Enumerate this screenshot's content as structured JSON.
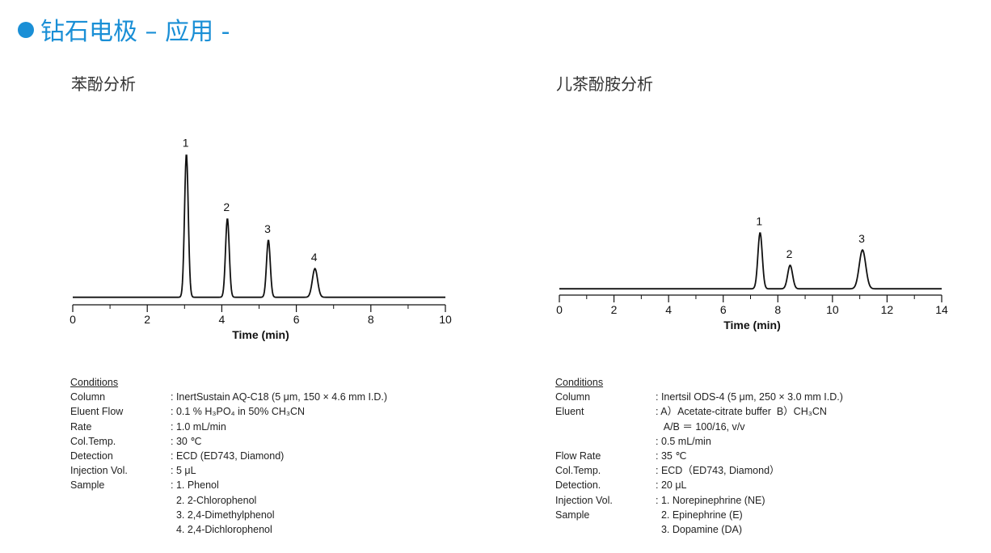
{
  "header": {
    "title": "钻石电极 – 应用 -"
  },
  "colors": {
    "accent": "#1a8fd6",
    "trace": "#111111"
  },
  "left": {
    "subtitle": "苯酚分析",
    "conditions_heading": "Conditions",
    "conditions": [
      {
        "k": "Column",
        "v": ": InertSustain AQ-C18 (5 μm, 150 × 4.6 mm I.D.)"
      },
      {
        "k": "Eluent  Flow",
        "v": ": 0.1 % H₃PO₄ in 50% CH₃CN"
      },
      {
        "k": "Rate",
        "v": ": 1.0 mL/min"
      },
      {
        "k": "Col.Temp.",
        "v": ": 30 ℃"
      },
      {
        "k": "Detection",
        "v": ": ECD (ED743, Diamond)"
      },
      {
        "k": "Injection Vol.",
        "v": ": 5 μL"
      },
      {
        "k": "Sample",
        "v": ": 1. Phenol"
      },
      {
        "k": "",
        "v": "  2. 2-Chlorophenol"
      },
      {
        "k": "",
        "v": "  3. 2,4-Dimethylphenol"
      },
      {
        "k": "",
        "v": "  4. 2,4-Dichlorophenol"
      }
    ]
  },
  "right": {
    "subtitle": "儿茶酚胺分析",
    "conditions_heading": "Conditions",
    "conditions": [
      {
        "k": "Column",
        "v": ": Inertsil ODS-4 (5 μm, 250 × 3.0 mm I.D.)"
      },
      {
        "k": "Eluent",
        "v": ": A）Acetate-citrate buffer  B）CH₃CN"
      },
      {
        "k": "",
        "v": "   A/B ＝ 100/16, v/v"
      },
      {
        "k": "",
        "v": ": 0.5 mL/min"
      },
      {
        "k": "Flow Rate",
        "v": ": 35 ℃"
      },
      {
        "k": "Col.Temp.",
        "v": ": ECD（ED743, Diamond）"
      },
      {
        "k": "Detection.",
        "v": ": 20 μL"
      },
      {
        "k": "Injection Vol.",
        "v": ": 1. Norepinephrine (NE)"
      },
      {
        "k": "Sample",
        "v": "  2. Epinephrine (E)"
      },
      {
        "k": "",
        "v": "  3. Dopamine (DA)"
      }
    ]
  },
  "chart_data": [
    {
      "type": "line",
      "xlabel": "Time (min)",
      "xlim": [
        0,
        10
      ],
      "xticks": [
        0,
        2,
        4,
        6,
        8,
        10
      ],
      "ylim": [
        0,
        1.1
      ],
      "baseline": 0.03,
      "peaks": [
        {
          "label": "1",
          "time": 3.05,
          "height": 1.0,
          "width": 0.05
        },
        {
          "label": "2",
          "time": 4.15,
          "height": 0.55,
          "width": 0.05
        },
        {
          "label": "3",
          "time": 5.25,
          "height": 0.4,
          "width": 0.05
        },
        {
          "label": "4",
          "time": 6.5,
          "height": 0.2,
          "width": 0.07
        }
      ]
    },
    {
      "type": "line",
      "xlabel": "Time (min)",
      "xlim": [
        0,
        14
      ],
      "xticks": [
        0,
        2,
        4,
        6,
        8,
        10,
        12,
        14
      ],
      "ylim": [
        0,
        1.1
      ],
      "baseline": 0.03,
      "peaks": [
        {
          "label": "1",
          "time": 7.35,
          "height": 0.55,
          "width": 0.08
        },
        {
          "label": "2",
          "time": 8.45,
          "height": 0.23,
          "width": 0.09
        },
        {
          "label": "3",
          "time": 11.1,
          "height": 0.38,
          "width": 0.12
        }
      ]
    }
  ]
}
